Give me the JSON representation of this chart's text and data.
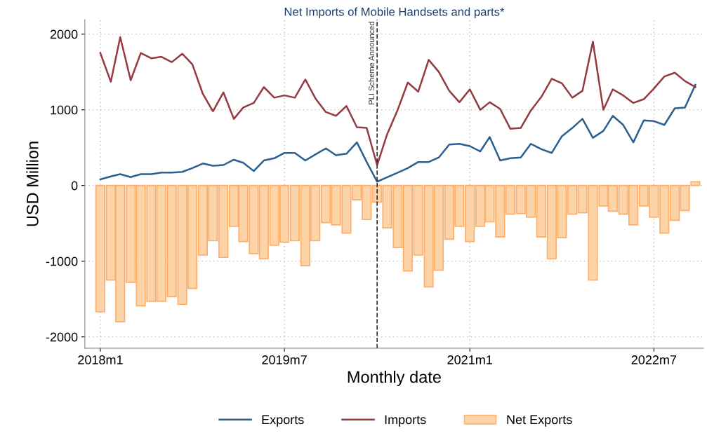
{
  "chart_data": {
    "type": "line",
    "title": "Net Imports of Mobile Handsets and parts*",
    "xlabel": "Monthly date",
    "ylabel": "USD Million",
    "x": [
      "2018-01",
      "2018-02",
      "2018-03",
      "2018-04",
      "2018-05",
      "2018-06",
      "2018-07",
      "2018-08",
      "2018-09",
      "2018-10",
      "2018-11",
      "2018-12",
      "2019-01",
      "2019-02",
      "2019-03",
      "2019-04",
      "2019-05",
      "2019-06",
      "2019-07",
      "2019-08",
      "2019-09",
      "2019-10",
      "2019-11",
      "2019-12",
      "2020-01",
      "2020-02",
      "2020-03",
      "2020-04",
      "2020-05",
      "2020-06",
      "2020-07",
      "2020-08",
      "2020-09",
      "2020-10",
      "2020-11",
      "2020-12",
      "2021-01",
      "2021-02",
      "2021-03",
      "2021-04",
      "2021-05",
      "2021-06",
      "2021-07",
      "2021-08",
      "2021-09",
      "2021-10",
      "2021-11",
      "2021-12",
      "2022-01",
      "2022-02",
      "2022-03",
      "2022-04",
      "2022-05",
      "2022-06",
      "2022-07",
      "2022-08",
      "2022-09",
      "2022-10",
      "2022-11"
    ],
    "series": [
      {
        "name": "Exports",
        "color": "#2a5f8f",
        "values": [
          80,
          120,
          150,
          110,
          150,
          150,
          170,
          170,
          180,
          230,
          290,
          260,
          270,
          340,
          300,
          190,
          330,
          360,
          430,
          430,
          330,
          410,
          490,
          400,
          420,
          570,
          310,
          50,
          110,
          170,
          230,
          310,
          310,
          370,
          540,
          550,
          520,
          450,
          640,
          330,
          360,
          370,
          550,
          480,
          430,
          650,
          760,
          880,
          630,
          720,
          920,
          800,
          570,
          860,
          850,
          800,
          1020,
          1030,
          1330
        ]
      },
      {
        "name": "Imports",
        "color": "#953a40",
        "values": [
          1750,
          1370,
          1960,
          1390,
          1750,
          1680,
          1700,
          1630,
          1740,
          1600,
          1210,
          980,
          1230,
          880,
          1030,
          1090,
          1300,
          1160,
          1190,
          1160,
          1400,
          1150,
          970,
          920,
          1050,
          770,
          760,
          270,
          680,
          1000,
          1360,
          1240,
          1660,
          1500,
          1250,
          1100,
          1270,
          1000,
          1100,
          1010,
          750,
          760,
          990,
          1170,
          1410,
          1350,
          1160,
          1250,
          1900,
          1000,
          1270,
          1190,
          1090,
          1140,
          1280,
          1440,
          1490,
          1380,
          1300
        ]
      },
      {
        "name": "Net Exports",
        "type": "bar",
        "color": "#fdd3a8",
        "values": [
          -1670,
          -1250,
          -1800,
          -1280,
          -1590,
          -1530,
          -1530,
          -1470,
          -1570,
          -1360,
          -920,
          -730,
          -950,
          -540,
          -740,
          -900,
          -970,
          -790,
          -750,
          -730,
          -1060,
          -730,
          -490,
          -520,
          -630,
          -190,
          -450,
          -220,
          -560,
          -820,
          -1130,
          -920,
          -1340,
          -1120,
          -710,
          -540,
          -740,
          -540,
          -480,
          -680,
          -380,
          -370,
          -420,
          -680,
          -970,
          -690,
          -380,
          -360,
          -1250,
          -270,
          -340,
          -380,
          -520,
          -270,
          -420,
          -630,
          -460,
          -330,
          50
        ]
      }
    ],
    "xlim": [
      "2017-11-16",
      "2022-11-25"
    ],
    "xticks": [
      {
        "value": "2018-01",
        "label": "2018m1"
      },
      {
        "value": "2019-07",
        "label": "2019m7"
      },
      {
        "value": "2021-01",
        "label": "2021m1"
      },
      {
        "value": "2022-07",
        "label": "2022m7"
      }
    ],
    "ylim": [
      -2150,
      2190
    ],
    "yticks": [
      -2000,
      -1000,
      0,
      1000,
      2000
    ],
    "ref_lines": [
      {
        "axis": "x",
        "value": "2020-04",
        "label": "PLI Scheme Announced",
        "color": "#333333",
        "line_style": "dashed"
      }
    ],
    "grid": true,
    "legend": "bottom"
  }
}
